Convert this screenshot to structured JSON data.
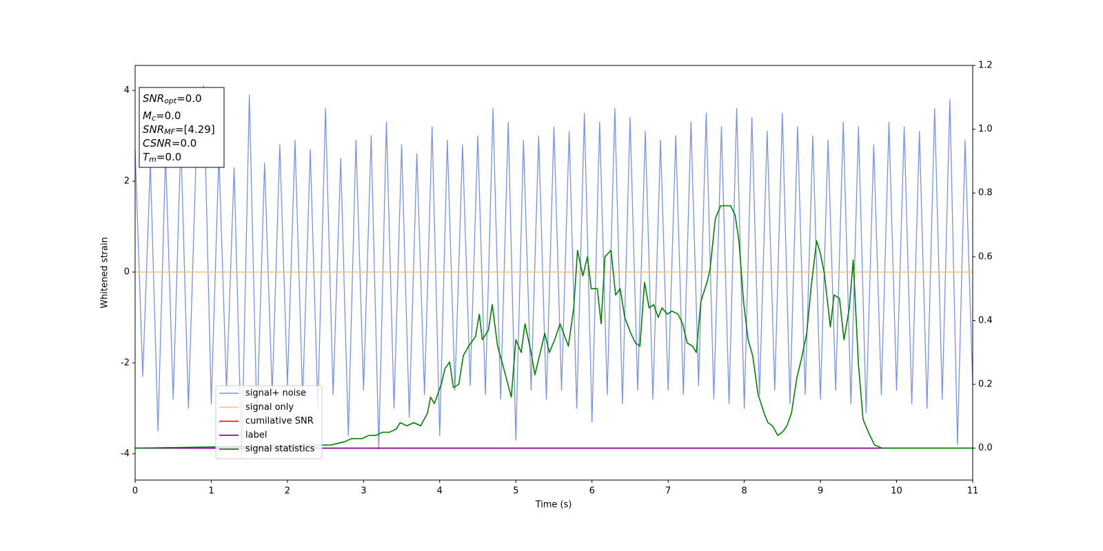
{
  "chart_data": {
    "type": "line",
    "xlabel": "Time (s)",
    "ylabel": "Whitened strain",
    "xlim": [
      0,
      11
    ],
    "xticks": [
      0,
      1,
      2,
      3,
      4,
      5,
      6,
      7,
      8,
      9,
      10,
      11
    ],
    "ylim": [
      -4.58,
      4.55
    ],
    "yticks": [
      -4,
      -2,
      0,
      2,
      4
    ],
    "y2lim": [
      -0.1,
      1.2
    ],
    "y2ticks": [
      {
        "value": 0,
        "label": "0.0"
      },
      0.2,
      0.4,
      0.6,
      0.8,
      {
        "value": 1,
        "label": "1.0"
      },
      1.2
    ],
    "legend": "lower left",
    "annotation": [
      {
        "main": "SNR",
        "sub": "opt",
        "rest": "=0.0"
      },
      {
        "main": "M",
        "sub": "c",
        "rest": "=0.0"
      },
      {
        "main": "SNR",
        "sub": "MF",
        "rest": "=[4.29]"
      },
      {
        "main": "CSNR",
        "rest": "=0.0"
      },
      {
        "main": "T",
        "sub": "m",
        "rest": "=0.0"
      }
    ],
    "series": [
      {
        "name": "signal+ noise",
        "color": "#7891e8",
        "x": [
          0,
          0.1,
          0.2,
          0.3,
          0.4,
          0.5,
          0.6,
          0.7,
          0.8,
          0.9,
          1,
          1.1,
          1.2,
          1.3,
          1.4,
          1.5,
          1.6,
          1.7,
          1.8,
          1.9,
          2,
          2.1,
          2.2,
          2.3,
          2.4,
          2.5,
          2.6,
          2.7,
          2.8,
          2.9,
          3,
          3.1,
          3.2,
          3.3,
          3.4,
          3.5,
          3.6,
          3.7,
          3.8,
          3.9,
          4,
          4.1,
          4.2,
          4.3,
          4.4,
          4.5,
          4.6,
          4.7,
          4.8,
          4.9,
          5,
          5.1,
          5.2,
          5.3,
          5.4,
          5.5,
          5.6,
          5.7,
          5.8,
          5.9,
          6,
          6.1,
          6.2,
          6.3,
          6.4,
          6.5,
          6.6,
          6.7,
          6.8,
          6.9,
          7,
          7.1,
          7.2,
          7.3,
          7.4,
          7.5,
          7.6,
          7.7,
          7.8,
          7.9,
          8,
          8.1,
          8.2,
          8.3,
          8.4,
          8.5,
          8.6,
          8.7,
          8.8,
          8.9,
          9,
          9.1,
          9.2,
          9.3,
          9.4,
          9.5,
          9.6,
          9.7,
          9.8,
          9.9,
          10,
          10.1,
          10.2,
          10.3,
          10.4,
          10.5,
          10.6,
          10.7,
          10.8,
          10.9,
          11
        ],
        "values": [
          2.7,
          -2.3,
          2.4,
          -3.5,
          2.6,
          -2.8,
          2.9,
          -3.0,
          2.5,
          4.1,
          -2.9,
          2.6,
          -2.6,
          2.3,
          -4.1,
          3.9,
          -3.3,
          2.4,
          -2.7,
          2.8,
          -2.5,
          2.9,
          -2.8,
          2.7,
          -3.0,
          3.6,
          -2.7,
          2.5,
          -3.6,
          2.9,
          -2.6,
          3.0,
          -3.9,
          3.3,
          -3.0,
          2.8,
          -3.2,
          2.6,
          -2.7,
          3.2,
          -3.6,
          2.9,
          -2.6,
          2.8,
          -2.5,
          3.0,
          -2.7,
          3.6,
          -2.8,
          3.3,
          -3.7,
          2.9,
          -2.6,
          3.0,
          -2.8,
          3.2,
          -2.6,
          3.1,
          -3.0,
          3.5,
          -3.3,
          3.3,
          -2.7,
          3.6,
          -2.9,
          3.4,
          -2.6,
          3.1,
          -2.8,
          2.9,
          -2.6,
          3.0,
          -2.7,
          3.3,
          -2.5,
          3.5,
          -2.8,
          3.2,
          -2.9,
          3.6,
          -3.0,
          3.4,
          -2.7,
          3.1,
          -2.6,
          3.5,
          -2.9,
          3.2,
          -2.7,
          3.0,
          -2.8,
          2.9,
          -2.6,
          3.3,
          -2.9,
          3.2,
          -3.1,
          2.8,
          -2.7,
          3.3,
          -2.6,
          3.2,
          -2.9,
          3.1,
          -3.0,
          3.6,
          -2.8,
          3.8,
          -3.8,
          2.9,
          -2.5
        ]
      },
      {
        "name": "signal only",
        "color": "#f7c27e",
        "x": [
          0,
          11
        ],
        "values": [
          0,
          0
        ]
      },
      {
        "name": "cumilative SNR",
        "color": "red",
        "axis": "y2",
        "x": [
          0,
          11
        ],
        "values": [
          0,
          0
        ]
      },
      {
        "name": "label",
        "color": "purple",
        "axis": "y2",
        "x": [
          0,
          11
        ],
        "values": [
          0,
          0
        ]
      },
      {
        "name": "signal statistics",
        "color": "green",
        "axis": "y2",
        "x": [
          0,
          2.57,
          2.75,
          2.84,
          2.93,
          2.98,
          3.07,
          3.16,
          3.25,
          3.34,
          3.43,
          3.48,
          3.57,
          3.66,
          3.75,
          3.84,
          3.88,
          3.93,
          4.02,
          4.07,
          4.13,
          4.18,
          4.25,
          4.31,
          4.38,
          4.47,
          4.52,
          4.56,
          4.64,
          4.69,
          4.76,
          4.83,
          4.94,
          5.0,
          5.07,
          5.12,
          5.2,
          5.25,
          5.38,
          5.44,
          5.51,
          5.58,
          5.69,
          5.76,
          5.81,
          5.88,
          5.94,
          5.99,
          6.07,
          6.12,
          6.17,
          6.25,
          6.31,
          6.37,
          6.43,
          6.51,
          6.57,
          6.63,
          6.69,
          6.75,
          6.81,
          6.87,
          6.92,
          6.99,
          7.05,
          7.13,
          7.19,
          7.25,
          7.32,
          7.37,
          7.43,
          7.51,
          7.55,
          7.62,
          7.69,
          7.75,
          7.82,
          7.88,
          7.93,
          7.99,
          8.05,
          8.11,
          8.18,
          8.26,
          8.31,
          8.37,
          8.44,
          8.5,
          8.56,
          8.62,
          8.69,
          8.75,
          8.82,
          8.88,
          8.95,
          9.0,
          9.05,
          9.13,
          9.18,
          9.25,
          9.31,
          9.38,
          9.43,
          9.5,
          9.56,
          9.63,
          9.71,
          9.81,
          10.0,
          10.36,
          10.72,
          11
        ],
        "values": [
          0,
          0.01,
          0.02,
          0.03,
          0.03,
          0.03,
          0.04,
          0.04,
          0.05,
          0.05,
          0.06,
          0.08,
          0.07,
          0.08,
          0.07,
          0.11,
          0.16,
          0.14,
          0.2,
          0.25,
          0.27,
          0.19,
          0.2,
          0.29,
          0.32,
          0.35,
          0.42,
          0.34,
          0.37,
          0.45,
          0.32,
          0.26,
          0.16,
          0.34,
          0.3,
          0.39,
          0.3,
          0.23,
          0.36,
          0.3,
          0.34,
          0.39,
          0.32,
          0.44,
          0.62,
          0.54,
          0.6,
          0.5,
          0.5,
          0.39,
          0.6,
          0.62,
          0.48,
          0.5,
          0.41,
          0.36,
          0.33,
          0.32,
          0.52,
          0.44,
          0.45,
          0.41,
          0.44,
          0.42,
          0.43,
          0.42,
          0.39,
          0.33,
          0.32,
          0.3,
          0.46,
          0.52,
          0.56,
          0.72,
          0.76,
          0.76,
          0.76,
          0.73,
          0.65,
          0.46,
          0.34,
          0.29,
          0.17,
          0.11,
          0.08,
          0.07,
          0.04,
          0.05,
          0.07,
          0.11,
          0.22,
          0.28,
          0.36,
          0.51,
          0.65,
          0.61,
          0.55,
          0.38,
          0.48,
          0.47,
          0.34,
          0.44,
          0.59,
          0.26,
          0.09,
          0.05,
          0.01,
          0.0,
          0.0,
          0.0,
          0.0,
          0
        ]
      }
    ]
  }
}
